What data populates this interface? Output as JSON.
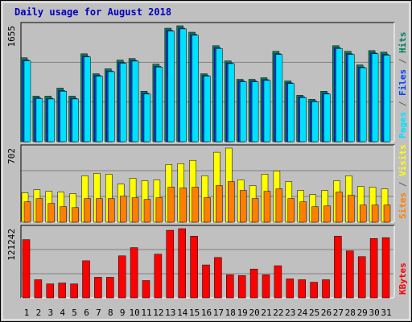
{
  "title": "Daily usage for August 2018",
  "title_color": "#0000c0",
  "x_axis": {
    "categories": [
      "1",
      "2",
      "3",
      "4",
      "5",
      "6",
      "7",
      "8",
      "9",
      "10",
      "11",
      "12",
      "13",
      "14",
      "15",
      "16",
      "17",
      "18",
      "19",
      "20",
      "21",
      "22",
      "23",
      "24",
      "25",
      "26",
      "27",
      "28",
      "29",
      "30",
      "31"
    ],
    "colors": [
      "#000000",
      "#000000",
      "#000000",
      "#008040",
      "#008040",
      "#000000",
      "#000000",
      "#000000",
      "#000000",
      "#000000",
      "#008040",
      "#008040",
      "#000000",
      "#000000",
      "#000000",
      "#000000",
      "#000000",
      "#008040",
      "#008040",
      "#000000",
      "#000000",
      "#000000",
      "#000000",
      "#000000",
      "#008040",
      "#008040",
      "#000000",
      "#000000",
      "#000000",
      "#000000",
      "#000000"
    ]
  },
  "chart_data": [
    {
      "type": "bar",
      "ylim": [
        0,
        1655
      ],
      "yticks": [
        1655
      ],
      "series": [
        {
          "name": "Hits",
          "color": "#00805c",
          "values": [
            1198,
            650,
            650,
            765,
            650,
            1255,
            970,
            1040,
            1165,
            1187,
            720,
            1107,
            1620,
            1655,
            1563,
            970,
            1370,
            1153,
            890,
            890,
            913,
            1290,
            867,
            662,
            605,
            720,
            1370,
            1290,
            1095,
            1300,
            1278
          ]
        },
        {
          "name": "Files",
          "color": "#0040ff",
          "values": [
            1165,
            625,
            620,
            730,
            620,
            1220,
            945,
            1010,
            1130,
            1160,
            690,
            1075,
            1590,
            1620,
            1530,
            945,
            1340,
            1125,
            865,
            865,
            885,
            1255,
            840,
            640,
            580,
            690,
            1340,
            1255,
            1065,
            1265,
            1245
          ]
        },
        {
          "name": "Pages",
          "color": "#00e0ff",
          "values": [
            1153,
            615,
            610,
            720,
            610,
            1210,
            935,
            1000,
            1120,
            1150,
            680,
            1065,
            1580,
            1610,
            1520,
            935,
            1330,
            1115,
            855,
            855,
            875,
            1245,
            830,
            630,
            570,
            680,
            1330,
            1245,
            1055,
            1255,
            1235
          ]
        }
      ]
    },
    {
      "type": "bar",
      "ylim": [
        0,
        702
      ],
      "yticks": [
        702
      ],
      "series": [
        {
          "name": "Visits",
          "color": "#ffff00",
          "values": [
            278,
            308,
            293,
            285,
            270,
            440,
            463,
            455,
            362,
            416,
            393,
            401,
            547,
            555,
            586,
            440,
            663,
            702,
            401,
            347,
            455,
            486,
            385,
            301,
            262,
            301,
            393,
            440,
            339,
            332,
            316
          ]
        },
        {
          "name": "Sites",
          "color": "#ff8000",
          "values": [
            193,
            224,
            178,
            147,
            139,
            224,
            224,
            224,
            247,
            232,
            216,
            232,
            332,
            324,
            332,
            232,
            347,
            385,
            301,
            224,
            293,
            316,
            224,
            193,
            147,
            154,
            285,
            255,
            162,
            162,
            162
          ]
        }
      ]
    },
    {
      "type": "bar",
      "ylim": [
        0,
        121242
      ],
      "yticks": [
        121242
      ],
      "series": [
        {
          "name": "KBytes",
          "color": "#ff0000",
          "values": [
            102000,
            31750,
            24500,
            26000,
            24500,
            65000,
            36000,
            36000,
            73600,
            88000,
            30300,
            76500,
            118400,
            121242,
            108000,
            57700,
            70700,
            40400,
            39000,
            50500,
            40400,
            56300,
            33200,
            31750,
            27400,
            31750,
            108000,
            82300,
            72200,
            103900,
            105400
          ]
        }
      ]
    }
  ]
}
